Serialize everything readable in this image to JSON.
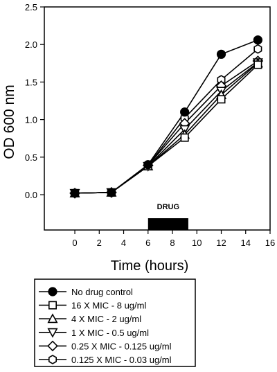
{
  "chart_data": {
    "type": "line",
    "title": "",
    "xlabel": "Time (hours)",
    "ylabel": "OD 600 nm",
    "xlim": [
      -2.5,
      16
    ],
    "ylim": [
      -0.47,
      2.5
    ],
    "x_ticks": [
      0,
      2,
      4,
      6,
      8,
      10,
      12,
      14,
      16
    ],
    "y_ticks": [
      0.0,
      0.5,
      1.0,
      1.5,
      2.0,
      2.5
    ],
    "x_tick_labels": [
      "0",
      "2",
      "4",
      "6",
      "8",
      "10",
      "12",
      "14",
      "16"
    ],
    "y_tick_labels": [
      "0.0",
      "0.5",
      "1.0",
      "1.5",
      "2.0",
      "2.5"
    ],
    "annotation": {
      "label": "DRUG",
      "x_start": 6,
      "x_end": 9.3
    },
    "legend_position": "below plot",
    "series": [
      {
        "name": "No drug control",
        "marker": "filled-circle",
        "x": [
          0,
          3,
          6,
          9,
          12,
          15
        ],
        "y": [
          0.02,
          0.03,
          0.4,
          1.1,
          1.87,
          2.06
        ]
      },
      {
        "name": "16 X MIC - 8 ug/ml",
        "marker": "open-square",
        "x": [
          0,
          3,
          6,
          9,
          12,
          15
        ],
        "y": [
          0.02,
          0.03,
          0.38,
          0.76,
          1.27,
          1.73
        ]
      },
      {
        "name": "4 X MIC - 2 ug/ml",
        "marker": "open-triangle-up",
        "x": [
          0,
          3,
          6,
          9,
          12,
          15
        ],
        "y": [
          0.02,
          0.03,
          0.38,
          0.8,
          1.33,
          1.75
        ]
      },
      {
        "name": "1 X MIC - 0.5 ug/ml",
        "marker": "open-triangle-down",
        "x": [
          0,
          3,
          6,
          9,
          12,
          15
        ],
        "y": [
          0.02,
          0.03,
          0.38,
          0.87,
          1.38,
          1.76
        ]
      },
      {
        "name": "0.25 X MIC - 0.125 ug/ml",
        "marker": "open-diamond",
        "x": [
          0,
          3,
          6,
          9,
          12,
          15
        ],
        "y": [
          0.02,
          0.03,
          0.39,
          0.95,
          1.45,
          1.78
        ]
      },
      {
        "name": "0.125 X MIC - 0.03 ug/ml",
        "marker": "open-hexagon",
        "x": [
          0,
          3,
          6,
          9,
          12,
          15
        ],
        "y": [
          0.02,
          0.03,
          0.39,
          1.02,
          1.53,
          1.94
        ]
      }
    ]
  }
}
